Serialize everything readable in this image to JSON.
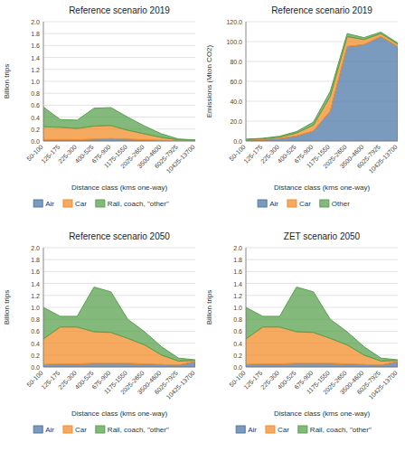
{
  "chart_data": [
    {
      "type": "area",
      "stacked": true,
      "grid": true,
      "legend": "bottom",
      "title": "Reference scenario 2019",
      "x_label": "Distance class (kms one-way)",
      "y_label": "Billion trips",
      "categories": [
        "50-100",
        "125-175",
        "225-300",
        "400-525",
        "675-900",
        "1175-1550",
        "2025-2650",
        "3500-4600",
        "6025-7925",
        "10425-13700"
      ],
      "ylim": [
        0,
        2.0
      ],
      "yticks": [
        {
          "value": 0,
          "label": "0.0"
        },
        0.2,
        0.4,
        0.6,
        0.8,
        {
          "value": 1,
          "label": "1.0"
        },
        1.2,
        1.4,
        1.6,
        1.8,
        {
          "value": 2,
          "label": "2.0"
        }
      ],
      "series": [
        {
          "name": "Air",
          "values": [
            0.02,
            0.02,
            0.02,
            0.03,
            0.04,
            0.03,
            0.02,
            0.01,
            0.005,
            0.002
          ]
        },
        {
          "name": "Car",
          "values": [
            0.22,
            0.21,
            0.19,
            0.22,
            0.22,
            0.15,
            0.1,
            0.05,
            0.015,
            0.008
          ]
        },
        {
          "name": "Rail, coach, \"other\"",
          "values": [
            0.33,
            0.13,
            0.14,
            0.3,
            0.3,
            0.22,
            0.13,
            0.06,
            0.015,
            0.008
          ]
        }
      ]
    },
    {
      "type": "area",
      "stacked": true,
      "grid": true,
      "legend": "bottom",
      "title": "Reference scenario 2019",
      "x_label": "Distance class (kms one-way)",
      "y_label": "Emissions (Mton CO2)",
      "categories": [
        "50-100",
        "125-175",
        "225-300",
        "400-525",
        "675-900",
        "1175-1550",
        "2025-2650",
        "3500-4600",
        "6025-7925",
        "10425-13700"
      ],
      "ylim": [
        0,
        120.0
      ],
      "yticks": [
        {
          "value": 0,
          "label": "0.0"
        },
        {
          "value": 20,
          "label": "20.0"
        },
        {
          "value": 40,
          "label": "40.0"
        },
        {
          "value": 60,
          "label": "60.0"
        },
        {
          "value": 80,
          "label": "80.0"
        },
        {
          "value": 100,
          "label": "100.0"
        },
        {
          "value": 120,
          "label": "120.0"
        }
      ],
      "series": [
        {
          "name": "Air",
          "values": [
            1.0,
            1.5,
            2.5,
            5.0,
            10.0,
            30.0,
            95.0,
            97.0,
            105.0,
            95.0
          ]
        },
        {
          "name": "Car",
          "values": [
            0.5,
            0.8,
            1.5,
            3.0,
            6.0,
            15.0,
            10.0,
            5.0,
            3.0,
            2.5
          ]
        },
        {
          "name": "Other",
          "values": [
            0.3,
            0.5,
            0.8,
            1.5,
            3.0,
            5.0,
            3.0,
            2.0,
            1.5,
            1.0
          ]
        }
      ]
    },
    {
      "type": "area",
      "stacked": true,
      "grid": true,
      "legend": "bottom",
      "title": "Reference scenario 2050",
      "x_label": "Distance class (kms one-way)",
      "y_label": "Billion trips",
      "categories": [
        "50-100",
        "125-175",
        "225-300",
        "400-525",
        "675-900",
        "1175-1550",
        "2025-2650",
        "3500-4600",
        "6025-7925",
        "10425-13700"
      ],
      "ylim": [
        0,
        2.0
      ],
      "yticks": [
        {
          "value": 0,
          "label": "0.0"
        },
        0.2,
        0.4,
        0.6,
        0.8,
        {
          "value": 1,
          "label": "1.0"
        },
        1.2,
        1.4,
        1.6,
        1.8,
        {
          "value": 2,
          "label": "2.0"
        }
      ],
      "series": [
        {
          "name": "Air",
          "values": [
            0.04,
            0.05,
            0.05,
            0.06,
            0.06,
            0.06,
            0.05,
            0.04,
            0.03,
            0.09
          ]
        },
        {
          "name": "Car",
          "values": [
            0.43,
            0.62,
            0.62,
            0.53,
            0.52,
            0.42,
            0.32,
            0.16,
            0.07,
            0.02
          ]
        },
        {
          "name": "Rail, coach, \"other\"",
          "values": [
            0.53,
            0.18,
            0.18,
            0.75,
            0.68,
            0.32,
            0.22,
            0.14,
            0.05,
            0.01
          ]
        }
      ]
    },
    {
      "type": "area",
      "stacked": true,
      "grid": true,
      "legend": "bottom",
      "title": "ZET scenario 2050",
      "x_label": "Distance class (kms one-way)",
      "y_label": "Billion trips",
      "categories": [
        "50-100",
        "125-175",
        "225-300",
        "400-525",
        "675-900",
        "1175-1550",
        "2025-2650",
        "3500-4600",
        "6025-7925",
        "10425-13700"
      ],
      "ylim": [
        0,
        2.0
      ],
      "yticks": [
        {
          "value": 0,
          "label": "0.0"
        },
        0.2,
        0.4,
        0.6,
        0.8,
        {
          "value": 1,
          "label": "1.0"
        },
        1.2,
        1.4,
        1.6,
        1.8,
        {
          "value": 2,
          "label": "2.0"
        }
      ],
      "series": [
        {
          "name": "Air",
          "values": [
            0.04,
            0.05,
            0.05,
            0.06,
            0.06,
            0.06,
            0.05,
            0.04,
            0.03,
            0.09
          ]
        },
        {
          "name": "Car",
          "values": [
            0.43,
            0.62,
            0.62,
            0.53,
            0.52,
            0.42,
            0.32,
            0.16,
            0.07,
            0.02
          ]
        },
        {
          "name": "Rail, coach, \"other\"",
          "values": [
            0.53,
            0.18,
            0.18,
            0.75,
            0.68,
            0.32,
            0.22,
            0.14,
            0.05,
            0.01
          ]
        }
      ]
    }
  ]
}
